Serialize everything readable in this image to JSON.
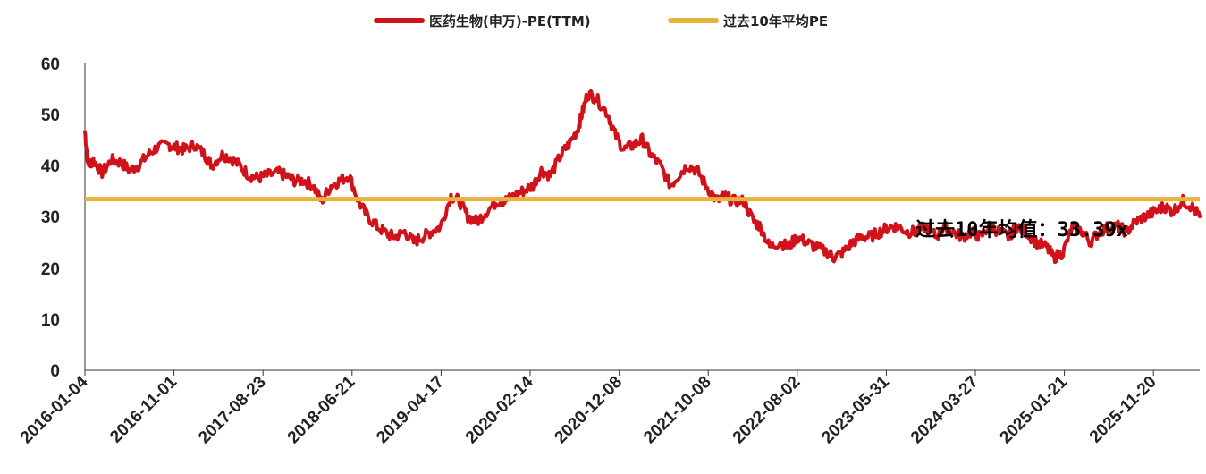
{
  "chart_data": {
    "type": "line",
    "legend": [
      {
        "label": "医药生物(申万)-PE(TTM)",
        "color": "#d0121b"
      },
      {
        "label": "过去10年平均PE",
        "color": "#e8b33a"
      }
    ],
    "legend_position": "top-center",
    "y_ticks": [
      "0",
      "10",
      "20",
      "30",
      "40",
      "50",
      "60"
    ],
    "ylim": [
      0,
      60
    ],
    "x_tick_labels": [
      "2016-01-04",
      "2016-11-01",
      "2017-08-23",
      "2018-06-21",
      "2019-04-17",
      "2020-02-14",
      "2020-12-08",
      "2021-10-08",
      "2022-08-02",
      "2023-05-31",
      "2024-03-27",
      "2025-01-21",
      "2025-11-20"
    ],
    "grid": false,
    "series": [
      {
        "name": "医药生物(申万)-PE(TTM)",
        "color": "#d0121b",
        "x": [
          "2016-01-04",
          "2016-01-15",
          "2016-02-01",
          "2016-03-01",
          "2016-04-01",
          "2016-05-03",
          "2016-06-01",
          "2016-07-01",
          "2016-08-01",
          "2016-09-01",
          "2016-10-10",
          "2016-11-01",
          "2016-12-01",
          "2017-01-03",
          "2017-02-06",
          "2017-03-01",
          "2017-04-05",
          "2017-05-02",
          "2017-06-01",
          "2017-07-03",
          "2017-08-01",
          "2017-09-01",
          "2017-10-09",
          "2017-11-01",
          "2017-12-01",
          "2018-01-02",
          "2018-02-01",
          "2018-03-01",
          "2018-04-02",
          "2018-05-02",
          "2018-06-01",
          "2018-07-02",
          "2018-08-01",
          "2018-09-03",
          "2018-10-08",
          "2018-11-01",
          "2018-12-03",
          "2019-01-02",
          "2019-02-01",
          "2019-03-01",
          "2019-04-01",
          "2019-05-06",
          "2019-06-03",
          "2019-07-01",
          "2019-08-01",
          "2019-09-02",
          "2019-10-08",
          "2019-11-01",
          "2019-12-02",
          "2020-01-02",
          "2020-02-03",
          "2020-03-02",
          "2020-04-01",
          "2020-05-06",
          "2020-06-01",
          "2020-07-01",
          "2020-07-15",
          "2020-08-03",
          "2020-09-01",
          "2020-10-09",
          "2020-11-02",
          "2020-12-01",
          "2021-01-04",
          "2021-02-01",
          "2021-03-01",
          "2021-04-01",
          "2021-05-06",
          "2021-06-01",
          "2021-07-01",
          "2021-08-02",
          "2021-09-01",
          "2021-10-08",
          "2021-11-01",
          "2021-12-01",
          "2022-01-04",
          "2022-02-07",
          "2022-03-01",
          "2022-04-01",
          "2022-05-05",
          "2022-06-01",
          "2022-07-01",
          "2022-08-01",
          "2022-09-01",
          "2022-10-10",
          "2022-11-01",
          "2022-12-01",
          "2023-01-03",
          "2023-02-01",
          "2023-03-01",
          "2023-04-03",
          "2023-05-04",
          "2023-06-01",
          "2023-07-03",
          "2023-08-01",
          "2023-09-01",
          "2023-10-09",
          "2023-11-01",
          "2023-12-01",
          "2024-01-02",
          "2024-02-01",
          "2024-03-01",
          "2024-04-01",
          "2024-05-06",
          "2024-06-03",
          "2024-07-01",
          "2024-08-01",
          "2024-09-02",
          "2024-10-08",
          "2024-11-01",
          "2024-12-02",
          "2025-01-02",
          "2025-02-05",
          "2025-03-03",
          "2025-04-01",
          "2025-05-06",
          "2025-06-03",
          "2025-07-01",
          "2025-08-01",
          "2025-09-01",
          "2025-10-09",
          "2025-11-03",
          "2025-12-01",
          "2026-01-05",
          "2026-02-02",
          "2026-03-02"
        ],
        "values": [
          46.5,
          40,
          41,
          38.5,
          41,
          40.5,
          39,
          40,
          42,
          43.5,
          44,
          43.5,
          43,
          44,
          42,
          40,
          42,
          41.5,
          40,
          38,
          37.5,
          38,
          38.5,
          38,
          37,
          37,
          36,
          33,
          36,
          37,
          38,
          33,
          30,
          28,
          26.5,
          26,
          27,
          25,
          26,
          27,
          28,
          34,
          33,
          30,
          29,
          31,
          33,
          33,
          34,
          35,
          36,
          39,
          38,
          42,
          44,
          47,
          50,
          54,
          53,
          50,
          46,
          43,
          44,
          45,
          42,
          40,
          36,
          38,
          40,
          39,
          36,
          33,
          34,
          33,
          33,
          29,
          28,
          24,
          25,
          24,
          26,
          25,
          24,
          23,
          22,
          23,
          25,
          26,
          26,
          27,
          28,
          28,
          27,
          27,
          28,
          26,
          28,
          27,
          26,
          27,
          26,
          28,
          27,
          26,
          28,
          27,
          25,
          24,
          22,
          23,
          28,
          27,
          25,
          27,
          28,
          28,
          27,
          29,
          30,
          31,
          32,
          31,
          33,
          32,
          30
        ]
      },
      {
        "name": "过去10年平均PE",
        "color": "#e8b33a",
        "values": [
          33.39,
          33.39
        ]
      }
    ],
    "annotation": "过去10年均值：33.39x"
  }
}
